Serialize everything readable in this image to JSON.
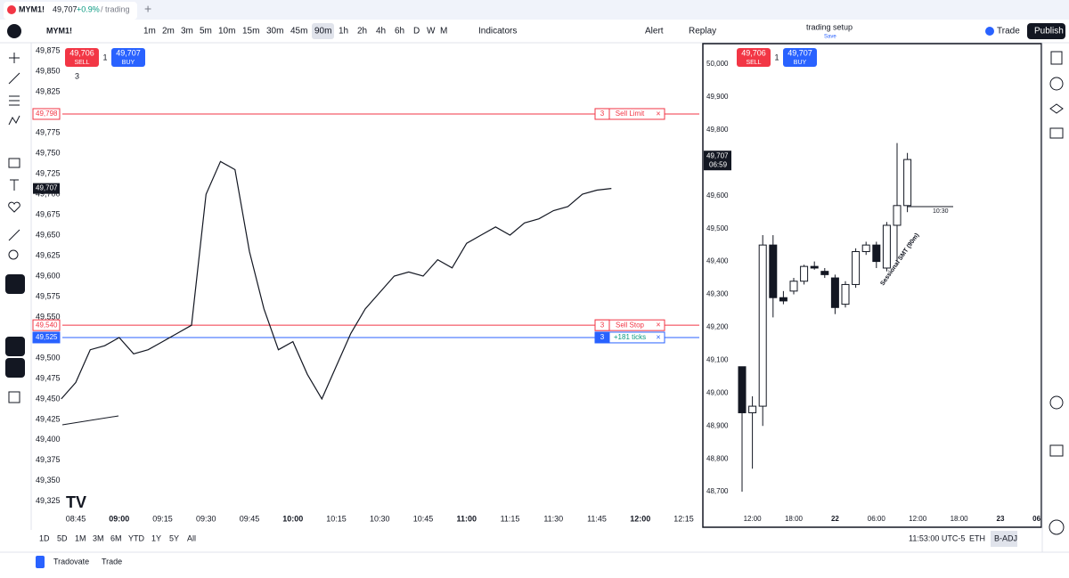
{
  "tab": {
    "symbol": "MYM1!",
    "price": "49,707",
    "change": "+0.9%",
    "path": "/ trading"
  },
  "toolbar": {
    "symbol": "MYM1!",
    "intervals": [
      "1m",
      "2m",
      "3m",
      "5m",
      "10m",
      "15m",
      "30m",
      "45m",
      "90m",
      "1h",
      "2h",
      "4h",
      "6h",
      "D",
      "W",
      "M"
    ],
    "active_interval": "90m",
    "indicators": "Indicators",
    "alert": "Alert",
    "replay": "Replay",
    "layout": "trading setup",
    "layout_status": "Save",
    "trade": "Trade",
    "publish": "Publish"
  },
  "bottom": {
    "ranges": [
      "1D",
      "5D",
      "1M",
      "3M",
      "6M",
      "YTD",
      "1Y",
      "5Y",
      "All"
    ],
    "time": "11:53:00 UTC-5",
    "session": "ETH",
    "adjust": "B-ADJ",
    "broker": "Tradovate",
    "broker_tab": "Trade"
  },
  "chart_data": [
    {
      "type": "line",
      "color": "#131722",
      "x": [
        "08:40",
        "08:45",
        "08:50",
        "08:55",
        "09:00",
        "09:05",
        "09:10",
        "09:15",
        "09:20",
        "09:25",
        "09:30",
        "09:35",
        "09:40",
        "09:45",
        "09:50",
        "09:55",
        "10:00",
        "10:05",
        "10:10",
        "10:15",
        "10:20",
        "10:25",
        "10:30",
        "10:35",
        "10:40",
        "10:45",
        "10:50",
        "10:55",
        "11:00",
        "11:05",
        "11:10",
        "11:15",
        "11:20",
        "11:25",
        "11:30",
        "11:35",
        "11:40",
        "11:45",
        "11:50"
      ],
      "values": [
        49450,
        49470,
        49510,
        49515,
        49525,
        49505,
        49510,
        49520,
        49530,
        49540,
        49700,
        49740,
        49730,
        49630,
        49560,
        49510,
        49520,
        49480,
        49450,
        49490,
        49530,
        49560,
        49580,
        49600,
        49605,
        49600,
        49620,
        49610,
        49640,
        49650,
        49660,
        49650,
        49665,
        49670,
        49680,
        49685,
        49700,
        49705,
        49707
      ],
      "ylim": [
        49290,
        49885
      ],
      "yticks": [
        {
          "value": 49325,
          "label": "49,325"
        },
        {
          "value": 49350,
          "label": "49,350"
        },
        {
          "value": 49375,
          "label": "49,375"
        },
        {
          "value": 49400,
          "label": "49,400"
        },
        {
          "value": 49425,
          "label": "49,425"
        },
        {
          "value": 49450,
          "label": "49,450"
        },
        {
          "value": 49475,
          "label": "49,475"
        },
        {
          "value": 49500,
          "label": "49,500"
        },
        {
          "value": 49525,
          "label": "49,525"
        },
        {
          "value": 49550,
          "label": "49,550"
        },
        {
          "value": 49575,
          "label": "49,575"
        },
        {
          "value": 49600,
          "label": "49,600"
        },
        {
          "value": 49625,
          "label": "49,625"
        },
        {
          "value": 49650,
          "label": "49,650"
        },
        {
          "value": 49675,
          "label": "49,675"
        },
        {
          "value": 49700,
          "label": "49,700"
        },
        {
          "value": 49725,
          "label": "49,725"
        },
        {
          "value": 49750,
          "label": "49,750"
        },
        {
          "value": 49775,
          "label": "49,775"
        },
        {
          "value": 49800,
          "label": "49,800"
        },
        {
          "value": 49825,
          "label": "49,825"
        },
        {
          "value": 49850,
          "label": "49,850"
        },
        {
          "value": 49875,
          "label": "49,875"
        }
      ],
      "xticks": [
        "08:45",
        "09:00",
        "09:15",
        "09:30",
        "09:45",
        "10:00",
        "10:15",
        "10:30",
        "10:45",
        "11:00",
        "11:15",
        "11:30",
        "11:45",
        "12:00",
        "12:15"
      ],
      "last_price": {
        "value": 49707,
        "label": "49,707"
      },
      "sell": {
        "price": "49,706",
        "label": "SELL"
      },
      "buy": {
        "price": "49,707",
        "label": "BUY"
      },
      "qty": 1,
      "lots": 3,
      "orders": [
        {
          "price": 49798,
          "label": "49,798",
          "qty": 3,
          "text": "Sell Limit",
          "color": "#f23645"
        },
        {
          "price": 49540,
          "label": "49,540",
          "qty": 3,
          "text": "Sell Stop",
          "color": "#f23645"
        },
        {
          "price": 49525,
          "label": "49,525",
          "qty": 3,
          "text": "+181 ticks",
          "color": "#2962ff"
        }
      ]
    },
    {
      "type": "candlestick",
      "open": [
        49080,
        48940,
        48960,
        49450,
        49290,
        49310,
        49340,
        49385,
        49370,
        49350,
        49270,
        49330,
        49430,
        49450,
        49380,
        49510,
        49570
      ],
      "high": [
        49080,
        48990,
        49480,
        49480,
        49310,
        49350,
        49390,
        49400,
        49380,
        49360,
        49340,
        49440,
        49460,
        49460,
        49520,
        49760,
        49730
      ],
      "low": [
        48700,
        48770,
        48900,
        49230,
        49270,
        49300,
        49330,
        49375,
        49350,
        49240,
        49260,
        49320,
        49420,
        49380,
        49370,
        49400,
        49550
      ],
      "close": [
        48940,
        48960,
        49450,
        49290,
        49280,
        49340,
        49385,
        49380,
        49360,
        49260,
        49330,
        49430,
        49450,
        49400,
        49510,
        49570,
        49710
      ],
      "ylim": [
        48592,
        50065
      ],
      "yticks": [
        {
          "value": 48700,
          "label": "48,700"
        },
        {
          "value": 48800,
          "label": "48,800"
        },
        {
          "value": 48900,
          "label": "48,900"
        },
        {
          "value": 49000,
          "label": "49,000"
        },
        {
          "value": 49100,
          "label": "49,100"
        },
        {
          "value": 49200,
          "label": "49,200"
        },
        {
          "value": 49300,
          "label": "49,300"
        },
        {
          "value": 49400,
          "label": "49,400"
        },
        {
          "value": 49500,
          "label": "49,500"
        },
        {
          "value": 49600,
          "label": "49,600"
        },
        {
          "value": 49700,
          "label": "49,700"
        },
        {
          "value": 49800,
          "label": "49,800"
        },
        {
          "value": 49900,
          "label": "49,900"
        },
        {
          "value": 50000,
          "label": "50,000"
        }
      ],
      "xticks": [
        {
          "value": 1,
          "label": "12:00"
        },
        {
          "value": 5,
          "label": "18:00"
        },
        {
          "value": 9,
          "label": "22"
        },
        {
          "value": 13,
          "label": "06:00"
        },
        {
          "value": 17,
          "label": "12:00"
        },
        {
          "value": 21,
          "label": "18:00"
        },
        {
          "value": 25,
          "label": "23"
        },
        {
          "value": 28.5,
          "label": "06"
        }
      ],
      "last_price": {
        "value": 49707,
        "label": "49,707",
        "countdown": "06:59"
      },
      "sell": {
        "price": "49,706",
        "label": "SELL"
      },
      "buy": {
        "price": "49,707",
        "label": "BUY"
      },
      "qty": 1,
      "annotation": "Sessional SMT (90m)",
      "marker": "10:30"
    }
  ]
}
